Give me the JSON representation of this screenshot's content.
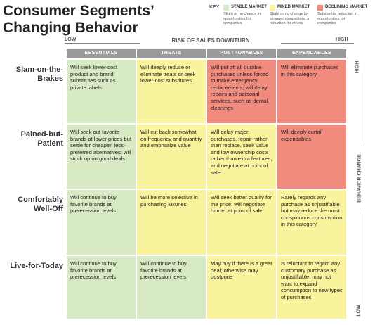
{
  "header": {
    "title": "Consumer Segments’ Changing Behavior"
  },
  "key": {
    "label": "KEY",
    "items": [
      {
        "name": "STABLE MARKET",
        "description": "Slight or no change in opportunities for companies",
        "color": "#d8eac4"
      },
      {
        "name": "MIXED MARKET",
        "description": "Slight or no change for stronger competitors; a reduction for others",
        "color": "#f9f39d"
      },
      {
        "name": "DECLINING MARKET",
        "description": "Substantial reduction in opportunities for companies",
        "color": "#f08b7e"
      }
    ]
  },
  "x_axis": {
    "label": "RISK OF SALES DOWNTURN",
    "low": "LOW",
    "high": "HIGH"
  },
  "y_axis": {
    "label": "BEHAVIOR CHANGE",
    "high": "HIGH",
    "low": "LOW"
  },
  "table": {
    "columns": [
      "ESSENTIALS",
      "TREATS",
      "POSTPONABLES",
      "EXPENDABLES"
    ],
    "rows": [
      {
        "label": "Slam-on-the-Brakes",
        "cells": [
          {
            "text": "Will seek lower-cost product and brand substitutes such as private labels",
            "color": "#d8eac4"
          },
          {
            "text": "Will deeply reduce or eliminate treats or seek lower-cost substitutes",
            "color": "#f9f39d"
          },
          {
            "text": "Will put off all durable purchases unless forced to make emergency replacements; will delay repairs and personal services, such as dental cleanings",
            "color": "#f08b7e"
          },
          {
            "text": "Will eliminate purchases in this category",
            "color": "#f08b7e"
          }
        ]
      },
      {
        "label": "Pained-but-Patient",
        "cells": [
          {
            "text": "Will seek out favorite brands at lower prices but settle for cheaper, less-preferred alternatives; will stock up on good deals",
            "color": "#d8eac4"
          },
          {
            "text": "Will cut back somewhat on frequency and quantity and emphasize value",
            "color": "#f9f39d"
          },
          {
            "text": "Will delay major purchases, repair rather than replace, seek value and low ownership costs rather than extra features, and negotiate at point of sale",
            "color": "#f9f39d"
          },
          {
            "text": "Will deeply curtail expendables",
            "color": "#f08b7e"
          }
        ]
      },
      {
        "label": "Comfortably Well-Off",
        "cells": [
          {
            "text": "Will continue to buy favorite brands at prerecession levels",
            "color": "#d8eac4"
          },
          {
            "text": "Will be more selective in purchasing luxuries",
            "color": "#f9f39d"
          },
          {
            "text": "Will seek better quality for the price; will negotiate harder at point of sale",
            "color": "#f9f39d"
          },
          {
            "text": "Rarely regards any purchase as unjustifiable but may reduce the most conspicuous consumption in this category",
            "color": "#f9f39d"
          }
        ]
      },
      {
        "label": "Live-for-Today",
        "cells": [
          {
            "text": "Will continue to buy favorite brands at prerecession levels",
            "color": "#d8eac4"
          },
          {
            "text": "Will continue to buy favorite brands at prerecession levels",
            "color": "#d8eac4"
          },
          {
            "text": "May buy if there is a great deal; otherwise may postpone",
            "color": "#f9f39d"
          },
          {
            "text": "Is reluctant to regard any customary purchase as unjustifiable; may not want to expand consumption to new types of purchases",
            "color": "#f9f39d"
          }
        ]
      }
    ]
  }
}
